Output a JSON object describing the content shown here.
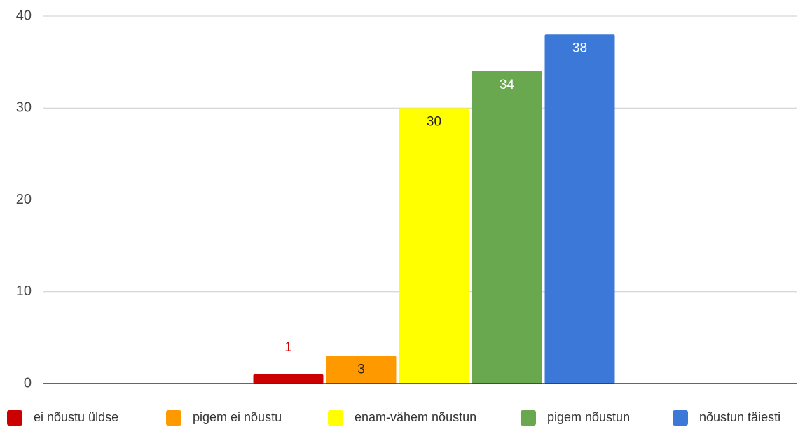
{
  "chart_data": {
    "type": "bar",
    "categories": [
      null
    ],
    "series": [
      {
        "name": "ei nõustu üldse",
        "color": "#cc0000",
        "values": [
          1
        ]
      },
      {
        "name": "pigem ei nõustu",
        "color": "#ff9900",
        "values": [
          3
        ]
      },
      {
        "name": "enam-vähem nõustun",
        "color": "#ffff00",
        "values": [
          30
        ]
      },
      {
        "name": "pigem nõustun",
        "color": "#6aa84f",
        "values": [
          34
        ]
      },
      {
        "name": "nõustun täiesti",
        "color": "#3c78d8",
        "values": [
          38
        ]
      }
    ],
    "ylim": [
      0,
      40
    ],
    "yticks": [
      0,
      10,
      20,
      30,
      40
    ],
    "grid": true,
    "legend": "bottom"
  }
}
